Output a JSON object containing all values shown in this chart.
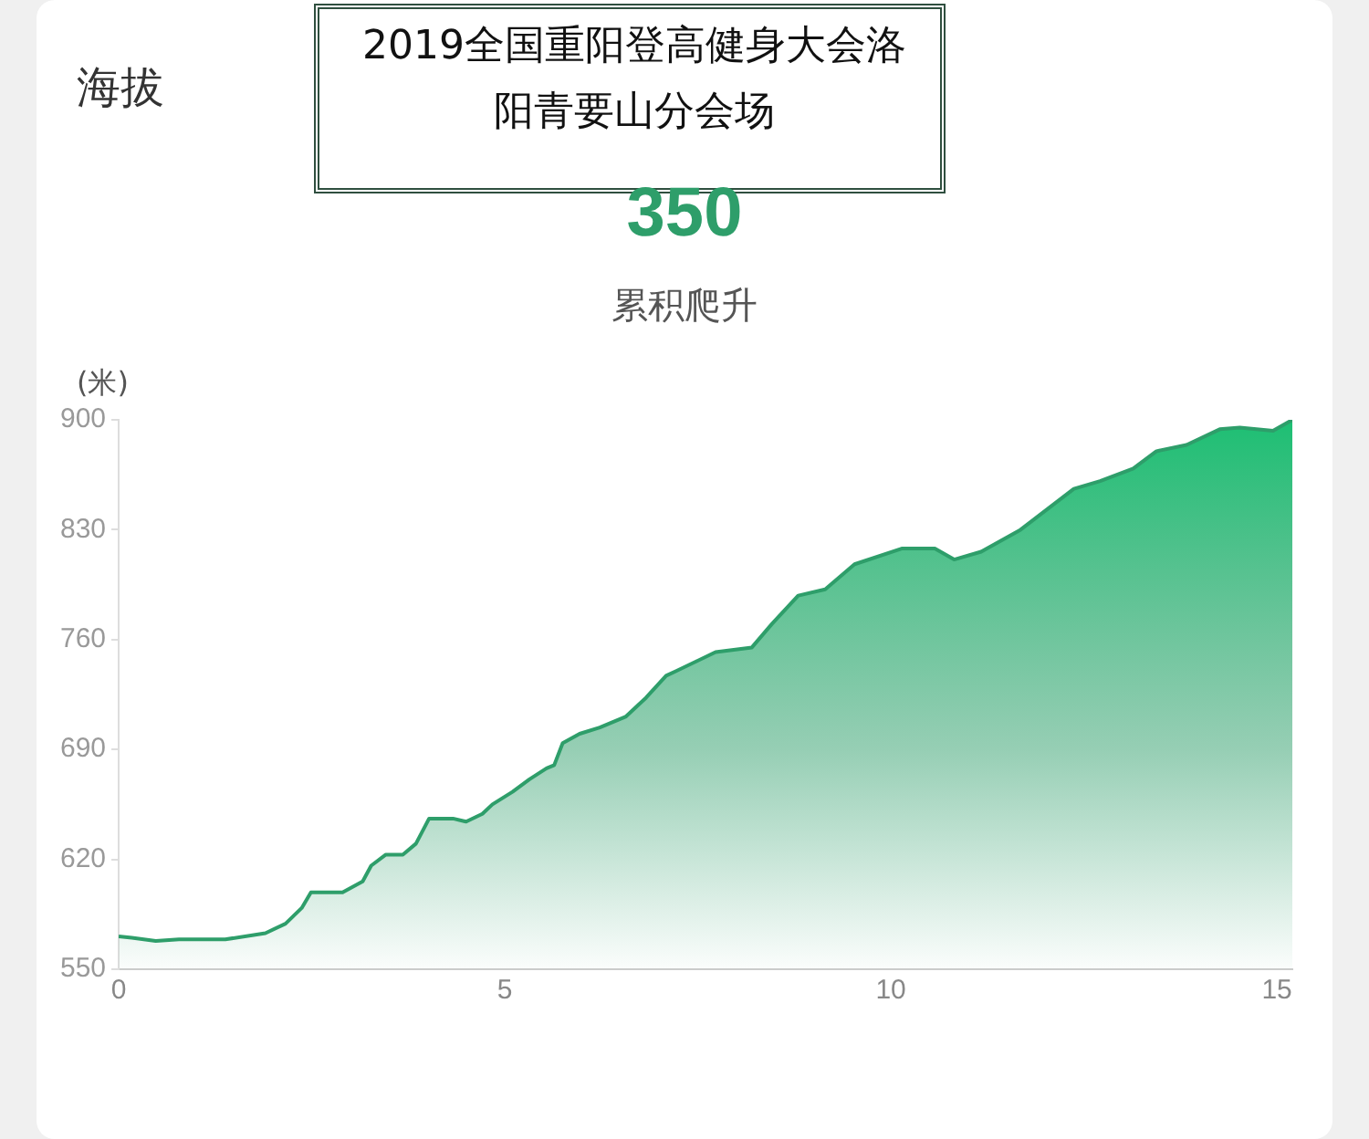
{
  "chart_data": {
    "type": "area",
    "title": "海拔",
    "subtitle": "2019全国重阳登高健身大会洛阳青要山分会场",
    "annotations": [
      "350",
      "累积爬升"
    ],
    "ylabel": "(米)",
    "xlim": [
      0,
      15.2
    ],
    "xticks": [
      0,
      5,
      10,
      15
    ],
    "ylim": [
      550,
      900
    ],
    "yticks": [
      550,
      620,
      690,
      760,
      830,
      900
    ],
    "grid": false,
    "legend": false,
    "series": [
      {
        "color": "#2e9e6a",
        "x": [
          0,
          0.17,
          0.48,
          0.78,
          1.38,
          1.9,
          2.16,
          2.37,
          2.49,
          2.9,
          3.16,
          3.27,
          3.46,
          3.68,
          3.85,
          4.02,
          4.33,
          4.5,
          4.71,
          4.84,
          5.1,
          5.32,
          5.54,
          5.64,
          5.75,
          5.97,
          6.23,
          6.57,
          6.83,
          7.09,
          7.22,
          7.73,
          8.2,
          8.46,
          8.8,
          9.15,
          9.53,
          10.14,
          10.57,
          10.82,
          11.17,
          11.68,
          12.37,
          12.71,
          13.14,
          13.44,
          13.83,
          14.26,
          14.52,
          14.95,
          15.2
        ],
        "values": [
          571,
          570,
          568,
          569,
          569,
          573,
          579,
          589,
          599,
          599,
          606,
          616,
          623,
          623,
          630,
          646,
          646,
          644,
          649,
          655,
          663,
          671,
          678,
          680,
          694,
          700,
          704,
          711,
          723,
          737,
          740,
          752,
          755,
          770,
          788,
          792,
          808,
          818,
          818,
          811,
          816,
          830,
          856,
          861,
          869,
          880,
          884,
          894,
          895,
          893,
          900
        ]
      }
    ]
  }
}
